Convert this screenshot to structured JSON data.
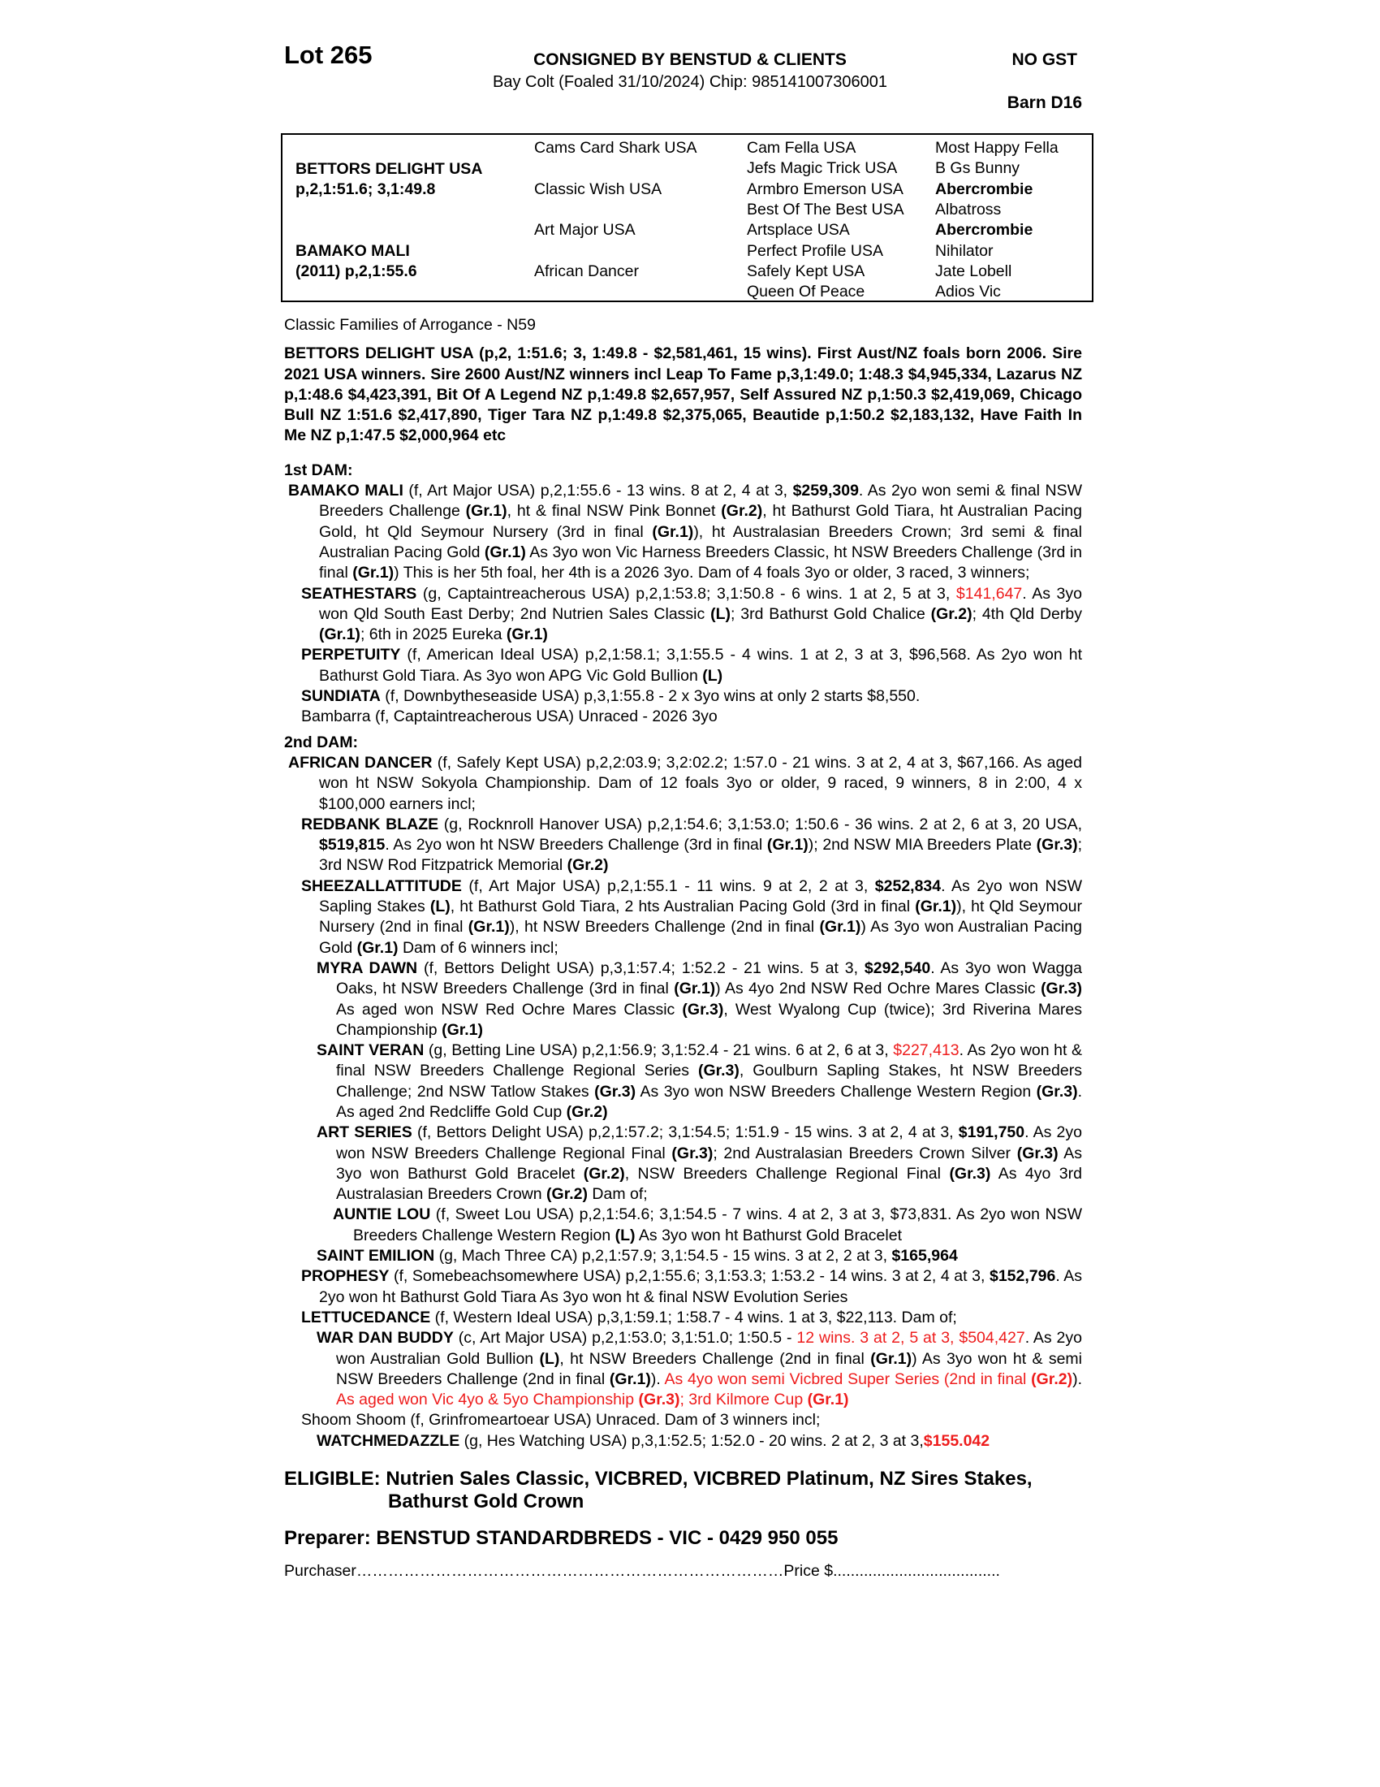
{
  "header": {
    "lot": "Lot 265",
    "consigned": "CONSIGNED BY BENSTUD & CLIENTS",
    "gst": "NO GST",
    "description": "Bay Colt (Foaled 31/10/2024) Chip: 985141007306001",
    "barn": "Barn D16"
  },
  "pedigree": {
    "sire": "BETTORS DELIGHT USA",
    "sire_record": "p,2,1:51.6; 3,1:49.8",
    "dam": "BAMAKO MALI",
    "dam_record": "(2011) p,2,1:55.6",
    "gen2": [
      "Cams Card Shark USA",
      "Classic Wish USA",
      "Art Major USA",
      "African Dancer"
    ],
    "gen3": [
      "Cam Fella USA",
      "Jefs Magic Trick USA",
      "Armbro Emerson USA",
      "Best Of The Best USA",
      "Artsplace USA",
      "Perfect Profile USA",
      "Safely Kept USA",
      "Queen Of Peace"
    ],
    "gen4": [
      "Most Happy Fella",
      "B Gs Bunny",
      "Abercrombie",
      "Albatross",
      "Abercrombie",
      "Nihilator",
      "Jate Lobell",
      "Adios Vic"
    ]
  },
  "family": "Classic Families of Arrogance - N59",
  "sire_summary": "BETTORS DELIGHT USA (p,2, 1:51.6; 3, 1:49.8 - $2,581,461, 15 wins). First Aust/NZ foals born 2006. Sire 2021 USA winners. Sire 2600 Aust/NZ winners incl Leap To Fame p,3,1:49.0; 1:48.3 $4,945,334, Lazarus NZ p,1:48.6 $4,423,391, Bit Of A Legend NZ p,1:49.8 $2,657,957, Self Assured NZ p,1:50.3 $2,419,069, Chicago Bull NZ 1:51.6 $2,417,890,  Tiger Tara NZ p,1:49.8 $2,375,065, Beautide p,1:50.2 $2,183,132, Have Faith In Me NZ p,1:47.5 $2,000,964 etc",
  "colors": {
    "highlight": "#ee1c1c"
  },
  "first_dam": {
    "heading": "1st DAM:",
    "entries": [
      {
        "level": 0,
        "segs": [
          [
            "b",
            "BAMAKO MALI"
          ],
          [
            "",
            " (f, Art Major USA) p,2,1:55.6 - 13 wins. 8 at 2, 4 at 3, "
          ],
          [
            "b",
            "$259,309"
          ],
          [
            "",
            ". As 2yo won semi & final NSW Breeders Challenge "
          ],
          [
            "b",
            "(Gr.1)"
          ],
          [
            "",
            ", ht & final NSW Pink Bonnet "
          ],
          [
            "b",
            "(Gr.2)"
          ],
          [
            "",
            ", ht Bathurst Gold Tiara, ht Australian Pacing Gold, ht Qld Seymour Nursery (3rd in final "
          ],
          [
            "b",
            "(Gr.1)"
          ],
          [
            "",
            "), ht Australasian Breeders Crown; 3rd semi & final Australian Pacing Gold "
          ],
          [
            "b",
            "(Gr.1)"
          ],
          [
            "",
            " As 3yo won Vic Harness Breeders Classic, ht NSW Breeders Challenge (3rd in final "
          ],
          [
            "b",
            "(Gr.1)"
          ],
          [
            "",
            ") This is her 5th foal, her 4th is a 2026 3yo. Dam of 4 foals 3yo or older, 3 raced, 3 winners;"
          ]
        ]
      },
      {
        "level": 1,
        "segs": [
          [
            "b",
            "SEATHESTARS"
          ],
          [
            "",
            " (g, Captaintreacherous USA) p,2,1:53.8; 3,1:50.8 - 6 wins. 1 at 2, 5 at 3, "
          ],
          [
            "r",
            "$141,647"
          ],
          [
            "",
            ". As 3yo won Qld South East Derby; 2nd Nutrien Sales Classic "
          ],
          [
            "b",
            "(L)"
          ],
          [
            "",
            "; 3rd Bathurst Gold Chalice "
          ],
          [
            "b",
            "(Gr.2)"
          ],
          [
            "",
            "; 4th Qld Derby "
          ],
          [
            "b",
            "(Gr.1)"
          ],
          [
            "",
            "; 6th in 2025 Eureka "
          ],
          [
            "b",
            "(Gr.1)"
          ]
        ]
      },
      {
        "level": 1,
        "segs": [
          [
            "b",
            "PERPETUITY"
          ],
          [
            "",
            " (f, American Ideal USA) p,2,1:58.1; 3,1:55.5 - 4 wins. 1 at 2, 3 at 3, $96,568. As 2yo won ht Bathurst Gold Tiara. As 3yo won APG Vic Gold Bullion "
          ],
          [
            "b",
            "(L)"
          ]
        ]
      },
      {
        "level": 1,
        "segs": [
          [
            "b",
            "SUNDIATA"
          ],
          [
            "",
            " (f, Downbytheseaside USA) p,3,1:55.8 - 2 x 3yo wins at only 2 starts $8,550."
          ]
        ]
      },
      {
        "level": 1,
        "segs": [
          [
            "",
            "Bambarra (f, Captaintreacherous USA) Unraced - 2026 3yo"
          ]
        ]
      }
    ]
  },
  "second_dam": {
    "heading": "2nd DAM:",
    "entries": [
      {
        "level": 0,
        "segs": [
          [
            "b",
            "AFRICAN DANCER"
          ],
          [
            "",
            " (f, Safely Kept USA) p,2,2:03.9; 3,2:02.2; 1:57.0 - 21 wins. 3 at 2, 4 at 3, $67,166. As aged won ht NSW Sokyola Championship. Dam of 12 foals 3yo or older, 9 raced, 9 winners, 8 in 2:00, 4 x $100,000 earners incl;"
          ]
        ]
      },
      {
        "level": 1,
        "segs": [
          [
            "b",
            "REDBANK BLAZE"
          ],
          [
            "",
            " (g, Rocknroll Hanover USA) p,2,1:54.6; 3,1:53.0; 1:50.6 - 36 wins. 2 at 2, 6 at 3, 20 USA, "
          ],
          [
            "b",
            "$519,815"
          ],
          [
            "",
            ". As 2yo won ht NSW Breeders Challenge (3rd in final "
          ],
          [
            "b",
            "(Gr.1)"
          ],
          [
            "",
            "); 2nd NSW MIA Breeders Plate "
          ],
          [
            "b",
            "(Gr.3)"
          ],
          [
            "",
            "; 3rd NSW Rod Fitzpatrick Memorial "
          ],
          [
            "b",
            "(Gr.2)"
          ]
        ]
      },
      {
        "level": 1,
        "segs": [
          [
            "b",
            "SHEEZALLATTITUDE"
          ],
          [
            "",
            " (f, Art Major USA) p,2,1:55.1 - 11 wins. 9 at 2, 2 at 3, "
          ],
          [
            "b",
            "$252,834"
          ],
          [
            "",
            ". As 2yo won NSW Sapling Stakes "
          ],
          [
            "b",
            "(L)"
          ],
          [
            "",
            ", ht Bathurst Gold Tiara, 2 hts Australian Pacing Gold (3rd in final "
          ],
          [
            "b",
            "(Gr.1)"
          ],
          [
            "",
            "), ht Qld Seymour Nursery (2nd in final "
          ],
          [
            "b",
            "(Gr.1)"
          ],
          [
            "",
            "), ht NSW Breeders Challenge (2nd in final "
          ],
          [
            "b",
            "(Gr.1)"
          ],
          [
            "",
            ") As 3yo won Australian Pacing Gold "
          ],
          [
            "b",
            "(Gr.1)"
          ],
          [
            "",
            " Dam of 6 winners incl;"
          ]
        ]
      },
      {
        "level": 2,
        "segs": [
          [
            "b",
            "MYRA DAWN"
          ],
          [
            "",
            " (f, Bettors Delight USA) p,3,1:57.4; 1:52.2 - 21 wins. 5 at 3, "
          ],
          [
            "b",
            "$292,540"
          ],
          [
            "",
            ". As 3yo won Wagga Oaks, ht NSW Breeders Challenge (3rd in final "
          ],
          [
            "b",
            "(Gr.1)"
          ],
          [
            "",
            ") As 4yo 2nd NSW Red Ochre Mares Classic "
          ],
          [
            "b",
            "(Gr.3)"
          ],
          [
            "",
            " As aged won NSW Red Ochre Mares Classic "
          ],
          [
            "b",
            "(Gr.3)"
          ],
          [
            "",
            ", West Wyalong Cup (twice); 3rd Riverina Mares Championship "
          ],
          [
            "b",
            "(Gr.1)"
          ]
        ]
      },
      {
        "level": 2,
        "segs": [
          [
            "b",
            "SAINT VERAN"
          ],
          [
            "",
            " (g, Betting Line USA) p,2,1:56.9; 3,1:52.4 - 21 wins. 6 at 2, 6 at 3, "
          ],
          [
            "r",
            "$227,413"
          ],
          [
            "",
            ". As 2yo won ht & final NSW Breeders Challenge Regional Series "
          ],
          [
            "b",
            "(Gr.3)"
          ],
          [
            "",
            ", Goulburn Sapling Stakes, ht NSW Breeders Challenge; 2nd NSW Tatlow Stakes "
          ],
          [
            "b",
            "(Gr.3)"
          ],
          [
            "",
            " As 3yo won NSW Breeders Challenge Western Region "
          ],
          [
            "b",
            "(Gr.3)"
          ],
          [
            "",
            ". As aged 2nd Redcliffe Gold Cup "
          ],
          [
            "b",
            "(Gr.2)"
          ]
        ]
      },
      {
        "level": 2,
        "segs": [
          [
            "b",
            "ART SERIES"
          ],
          [
            "",
            " (f, Bettors Delight USA) p,2,1:57.2; 3,1:54.5; 1:51.9 - 15 wins. 3 at 2, 4 at 3, "
          ],
          [
            "b",
            "$191,750"
          ],
          [
            "",
            ". As 2yo won NSW Breeders Challenge Regional Final "
          ],
          [
            "b",
            "(Gr.3)"
          ],
          [
            "",
            "; 2nd Australasian Breeders Crown Silver "
          ],
          [
            "b",
            "(Gr.3)"
          ],
          [
            "",
            " As 3yo won Bathurst Gold Bracelet "
          ],
          [
            "b",
            "(Gr.2)"
          ],
          [
            "",
            ", NSW Breeders Challenge Regional Final "
          ],
          [
            "b",
            "(Gr.3)"
          ],
          [
            "",
            " As 4yo 3rd Australasian Breeders Crown "
          ],
          [
            "b",
            "(Gr.2)"
          ],
          [
            "",
            " Dam of;"
          ]
        ]
      },
      {
        "level": 3,
        "segs": [
          [
            "b",
            "AUNTIE LOU"
          ],
          [
            "",
            " (f, Sweet Lou USA) p,2,1:54.6; 3,1:54.5 - 7 wins. 4 at 2, 3 at 3, $73,831. As 2yo won NSW Breeders Challenge Western Region "
          ],
          [
            "b",
            "(L)"
          ],
          [
            "",
            " As 3yo won ht Bathurst Gold Bracelet"
          ]
        ]
      },
      {
        "level": 2,
        "segs": [
          [
            "b",
            "SAINT EMILION"
          ],
          [
            "",
            " (g, Mach Three CA) p,2,1:57.9; 3,1:54.5 - 15 wins. 3 at 2, 2 at 3, "
          ],
          [
            "b",
            "$165,964"
          ]
        ]
      },
      {
        "level": 1,
        "segs": [
          [
            "b",
            "PROPHESY"
          ],
          [
            "",
            " (f, Somebeachsomewhere USA) p,2,1:55.6; 3,1:53.3; 1:53.2 - 14 wins. 3 at 2, 4 at 3, "
          ],
          [
            "b",
            "$152,796"
          ],
          [
            "",
            ". As 2yo won ht Bathurst Gold Tiara As 3yo won ht & final NSW Evolution Series"
          ]
        ]
      },
      {
        "level": 1,
        "segs": [
          [
            "b",
            "LETTUCEDANCE"
          ],
          [
            "",
            " (f, Western Ideal USA) p,3,1:59.1; 1:58.7 - 4 wins. 1 at 3, $22,113. Dam of;"
          ]
        ]
      },
      {
        "level": 2,
        "segs": [
          [
            "b",
            "WAR DAN BUDDY"
          ],
          [
            "",
            " (c, Art Major USA) p,2,1:53.0; 3,1:51.0; 1:50.5 - "
          ],
          [
            "r",
            "12 wins. 3 at 2, 5 at 3, $504,427"
          ],
          [
            "",
            ". As 2yo won Australian Gold Bullion "
          ],
          [
            "b",
            "(L)"
          ],
          [
            "",
            ", ht NSW Breeders Challenge (2nd in final "
          ],
          [
            "b",
            "(Gr.1)"
          ],
          [
            "",
            ") As 3yo won ht & semi NSW Breeders Challenge (2nd in final "
          ],
          [
            "b",
            "(Gr.1)"
          ],
          [
            "",
            "). "
          ],
          [
            "r",
            "As 4yo won semi Vicbred Super Series (2nd in final "
          ],
          [
            "br",
            "(Gr.2)"
          ],
          [
            "",
            "). "
          ],
          [
            "r",
            "As aged won Vic 4yo & 5yo Championship "
          ],
          [
            "br",
            "(Gr.3)"
          ],
          [
            "r",
            "; 3rd Kilmore Cup "
          ],
          [
            "br",
            "(Gr.1)"
          ]
        ]
      },
      {
        "level": 1,
        "segs": [
          [
            "",
            "Shoom Shoom (f, Grinfromeartoear USA) Unraced. Dam of 3 winners incl;"
          ]
        ]
      },
      {
        "level": 2,
        "segs": [
          [
            "b",
            "WATCHMEDAZZLE"
          ],
          [
            "",
            " (g, Hes Watching USA) p,3,1:52.5; 1:52.0 - 20 wins. 2 at 2, 3 at 3,"
          ],
          [
            "br",
            "$155.042"
          ]
        ]
      }
    ]
  },
  "eligible": {
    "line1": "ELIGIBLE: Nutrien Sales Classic, VICBRED, VICBRED Platinum, NZ Sires Stakes,",
    "line2": "Bathurst Gold Crown"
  },
  "preparer": "Preparer: BENSTUD STANDARDBREDS - VIC - 0429 950 055",
  "purchaser": "Purchaser………………………………………………………………………Price $......................................"
}
